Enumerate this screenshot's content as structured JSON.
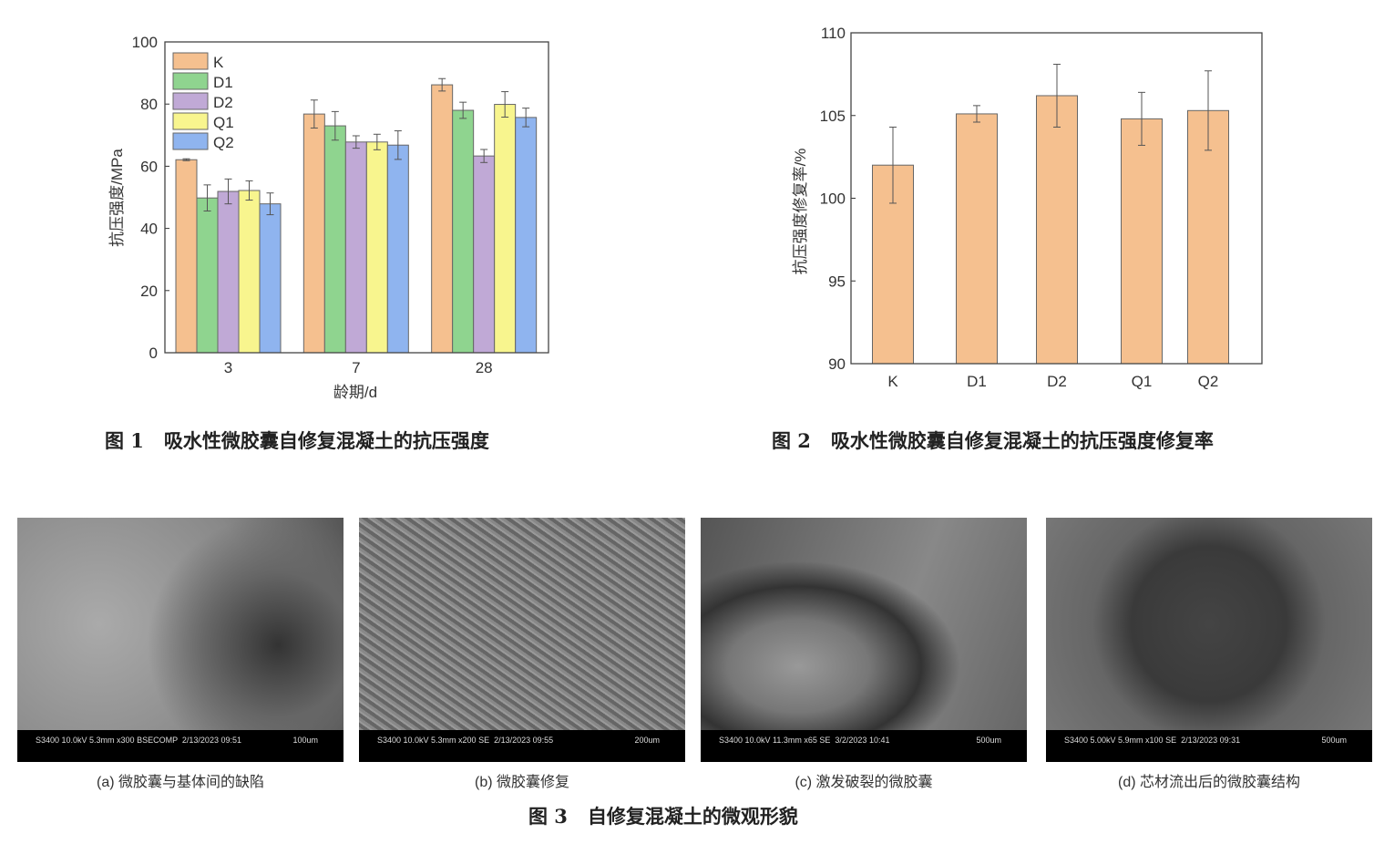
{
  "figures": {
    "fig1_caption": "图 1   吸水性微胶囊自修复混凝土的抗压强度",
    "fig2_caption": "图 2   吸水性微胶囊自修复混凝土的抗压强度修复率",
    "fig3_caption": "图 3   自修复混凝土的微观形貌"
  },
  "chart_data": [
    {
      "type": "bar",
      "title": "",
      "xlabel": "龄期/d",
      "ylabel": "抗压强度/MPa",
      "ylim": [
        0,
        100
      ],
      "yticks": [
        0,
        20,
        40,
        60,
        80,
        100
      ],
      "categories": [
        "3",
        "7",
        "28"
      ],
      "legend_position": "top-left",
      "series": [
        {
          "name": "K",
          "color": "#f5c08f",
          "values": [
            62.1,
            76.8,
            86.2
          ],
          "errors": [
            0.3,
            4.5,
            2.0
          ]
        },
        {
          "name": "D1",
          "color": "#8fd48f",
          "values": [
            49.8,
            73.0,
            78.0
          ],
          "errors": [
            4.2,
            4.6,
            2.6
          ]
        },
        {
          "name": "D2",
          "color": "#c0a9d6",
          "values": [
            51.9,
            67.8,
            63.3
          ],
          "errors": [
            4.0,
            2.0,
            2.1
          ]
        },
        {
          "name": "Q1",
          "color": "#f8f58e",
          "values": [
            52.2,
            67.8,
            79.9
          ],
          "errors": [
            3.1,
            2.5,
            4.1
          ]
        },
        {
          "name": "Q2",
          "color": "#8fb4ef",
          "values": [
            47.9,
            66.8,
            75.7
          ],
          "errors": [
            3.5,
            4.6,
            3.0
          ]
        }
      ]
    },
    {
      "type": "bar",
      "title": "",
      "xlabel": "",
      "ylabel": "抗压强度修复率/%",
      "ylim": [
        90,
        110
      ],
      "yticks": [
        90,
        95,
        100,
        105,
        110
      ],
      "categories": [
        "K",
        "D1",
        "D2",
        "Q1",
        "Q2"
      ],
      "color": "#f5c08f",
      "values": [
        102.0,
        105.1,
        106.2,
        104.8,
        105.3
      ],
      "errors": [
        2.3,
        0.5,
        1.9,
        1.6,
        2.4
      ]
    }
  ],
  "sem_images": [
    {
      "meta": "S3400 10.0kV 5.3mm x300 BSECOMP  2/13/2023 09:51",
      "scale": "100um",
      "caption": "(a) 微胶囊与基体间的缺陷"
    },
    {
      "meta": "S3400 10.0kV 5.3mm x200 SE  2/13/2023 09:55",
      "scale": "200um",
      "caption": "(b) 微胶囊修复"
    },
    {
      "meta": "S3400 10.0kV 11.3mm x65 SE  3/2/2023 10:41",
      "scale": "500um",
      "caption": "(c) 激发破裂的微胶囊"
    },
    {
      "meta": "S3400 5.00kV 5.9mm x100 SE  2/13/2023 09:31",
      "scale": "500um",
      "caption": "(d) 芯材流出后的微胶囊结构"
    }
  ]
}
